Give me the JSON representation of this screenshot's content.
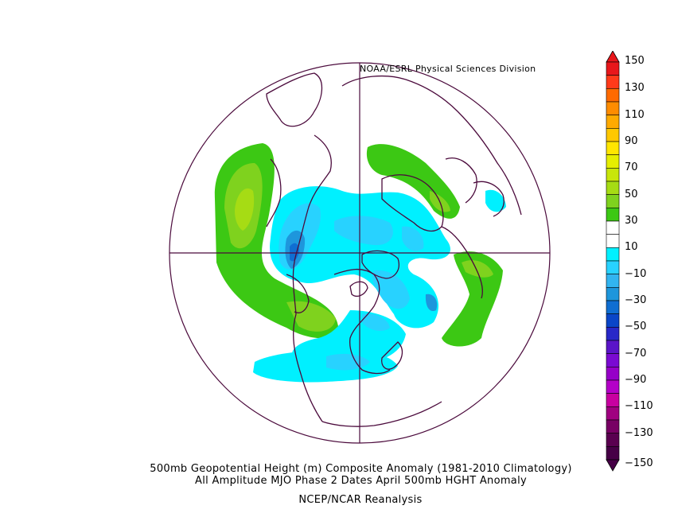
{
  "credit": "NOAA/ESRL Physical Sciences Division",
  "caption": {
    "line1": "500mb Geopotential Height (m) Composite Anomaly (1981-2010 Climatology)",
    "line2": "All Amplitude MJO Phase 2 Dates April 500mb HGHT Anomaly",
    "line3": "NCEP/NCAR Reanalysis"
  },
  "map": {
    "projection": "north-polar-stereographic",
    "anomaly_regions": [
      {
        "name": "north-pacific-positive",
        "sign": "positive",
        "max_level": 30
      },
      {
        "name": "central-pacific-positive",
        "sign": "positive",
        "max_level": 30
      },
      {
        "name": "north-atlantic-positive",
        "sign": "positive",
        "max_level": 30
      },
      {
        "name": "siberia-positive",
        "sign": "positive",
        "max_level": 30
      },
      {
        "name": "arctic-negative",
        "sign": "negative",
        "min_level": -50
      },
      {
        "name": "north-america-negative",
        "sign": "negative",
        "min_level": -30
      },
      {
        "name": "subtropical-pacific-negative",
        "sign": "negative",
        "min_level": -30
      }
    ]
  },
  "colorbar": {
    "labels": [
      "150",
      "130",
      "110",
      "90",
      "70",
      "50",
      "30",
      "10",
      "−10",
      "−30",
      "−50",
      "−70",
      "−90",
      "−110",
      "−130",
      "−150"
    ],
    "colors": [
      "#e8171b",
      "#ff3a1a",
      "#ff6a00",
      "#ff8c00",
      "#ffaa00",
      "#ffc800",
      "#ffe600",
      "#e6ee00",
      "#c8e60a",
      "#a6dc14",
      "#7fd21e",
      "#3cc814",
      "#ffffff",
      "#ffffff",
      "#00f0ff",
      "#28d2ff",
      "#32b4f0",
      "#1e96dc",
      "#0f6ed2",
      "#0a46c8",
      "#2828c8",
      "#5a14c8",
      "#7a0ad2",
      "#9600c8",
      "#b400c8",
      "#c800a0",
      "#a00080",
      "#780064",
      "#5a0050",
      "#460046"
    ]
  }
}
